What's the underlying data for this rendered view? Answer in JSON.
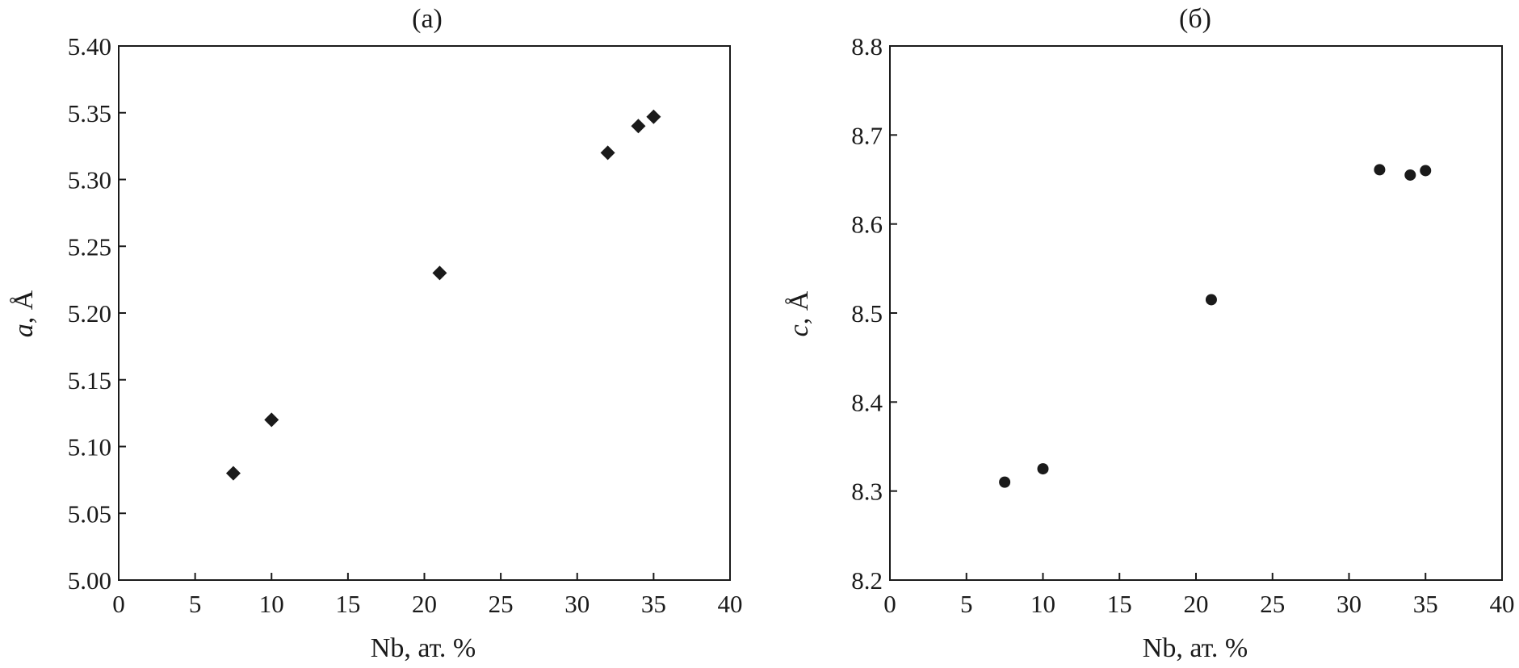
{
  "chart_data": [
    {
      "type": "scatter",
      "title": "(a)",
      "xlabel": "Nb, ат. %",
      "ylabel": "a, Å",
      "ylabel_var": "a",
      "ylabel_unit": ", Å",
      "xlim": [
        0,
        40
      ],
      "ylim": [
        5.0,
        5.4
      ],
      "xticks": [
        0,
        5,
        10,
        15,
        20,
        25,
        30,
        35,
        40
      ],
      "xtick_labels": [
        "0",
        "5",
        "10",
        "15",
        "20",
        "25",
        "30",
        "35",
        "40"
      ],
      "yticks": [
        5.0,
        5.05,
        5.1,
        5.15,
        5.2,
        5.25,
        5.3,
        5.35,
        5.4
      ],
      "ytick_labels": [
        "5.00",
        "5.05",
        "5.10",
        "5.15",
        "5.20",
        "5.25",
        "5.30",
        "5.35",
        "5.40"
      ],
      "marker": "diamond",
      "color": "#1a1a1a",
      "grid": false,
      "series": [
        {
          "x": [
            7.5,
            10,
            21,
            32,
            34,
            35
          ],
          "y": [
            5.08,
            5.12,
            5.23,
            5.32,
            5.34,
            5.347
          ]
        }
      ]
    },
    {
      "type": "scatter",
      "title": "(б)",
      "xlabel": "Nb, ат. %",
      "ylabel": "c, Å",
      "ylabel_var": "c",
      "ylabel_unit": ", Å",
      "xlim": [
        0,
        40
      ],
      "ylim": [
        8.2,
        8.8
      ],
      "xticks": [
        0,
        5,
        10,
        15,
        20,
        25,
        30,
        35,
        40
      ],
      "xtick_labels": [
        "0",
        "5",
        "10",
        "15",
        "20",
        "25",
        "30",
        "35",
        "40"
      ],
      "yticks": [
        8.2,
        8.3,
        8.4,
        8.5,
        8.6,
        8.7,
        8.8
      ],
      "ytick_labels": [
        "8.2",
        "8.3",
        "8.4",
        "8.5",
        "8.6",
        "8.7",
        "8.8"
      ],
      "marker": "circle",
      "color": "#1a1a1a",
      "grid": false,
      "series": [
        {
          "x": [
            7.5,
            10,
            21,
            32,
            34,
            35
          ],
          "y": [
            8.31,
            8.325,
            8.515,
            8.661,
            8.655,
            8.66
          ]
        }
      ]
    }
  ]
}
